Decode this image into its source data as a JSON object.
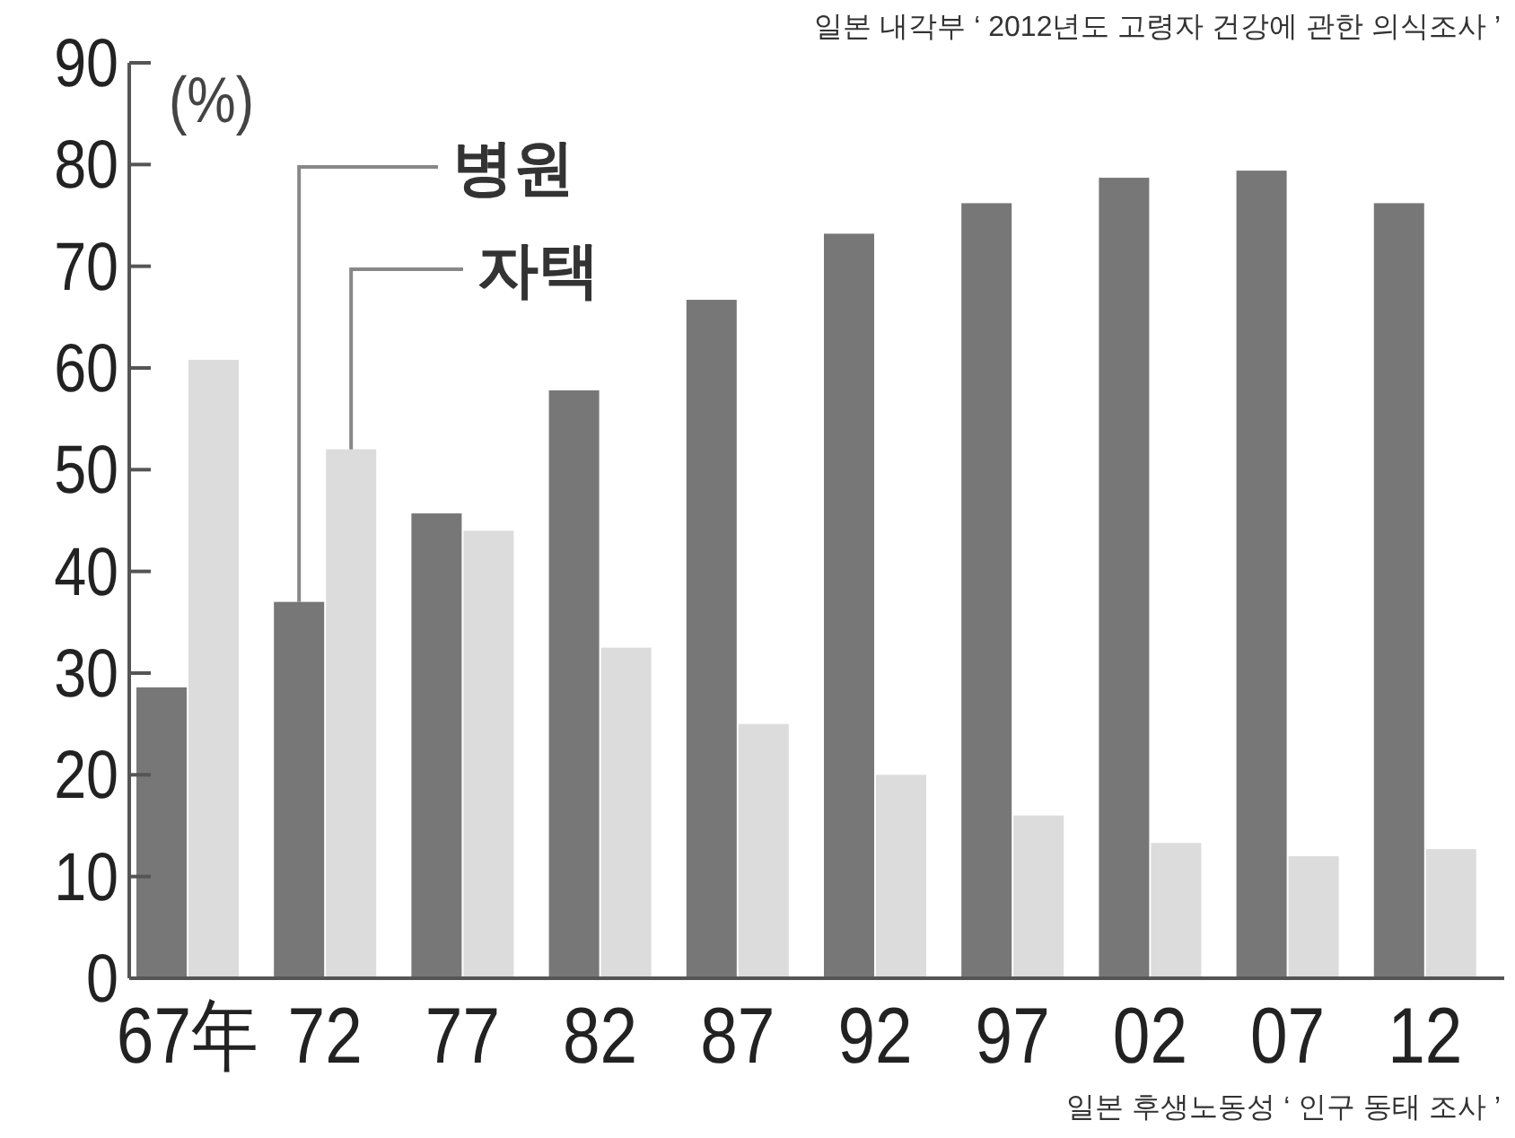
{
  "chart_data": {
    "type": "bar",
    "ylabel": "(%)",
    "categories": [
      "67年",
      "72",
      "77",
      "82",
      "87",
      "92",
      "97",
      "02",
      "07",
      "12"
    ],
    "series": [
      {
        "name": "병원",
        "color": "#777777",
        "values": [
          28.6,
          37,
          45.7,
          57.8,
          66.7,
          73.2,
          76.2,
          78.7,
          79.4,
          76.2
        ]
      },
      {
        "name": "자택",
        "color": "#dcdcdc",
        "values": [
          60.8,
          52,
          44,
          32.5,
          25,
          20,
          16,
          13.3,
          12,
          12.7
        ]
      }
    ],
    "ylim": [
      0,
      90
    ],
    "yticks": [
      0,
      10,
      20,
      30,
      40,
      50,
      60,
      70,
      80,
      90
    ],
    "legend": false,
    "grid": false,
    "annotations": [
      "일본 내각부 ‘ 2012년도 고령자 건강에 관한 의식조사 ’",
      "일본 후생노동성 ‘ 인구 동태 조사 ’"
    ]
  }
}
